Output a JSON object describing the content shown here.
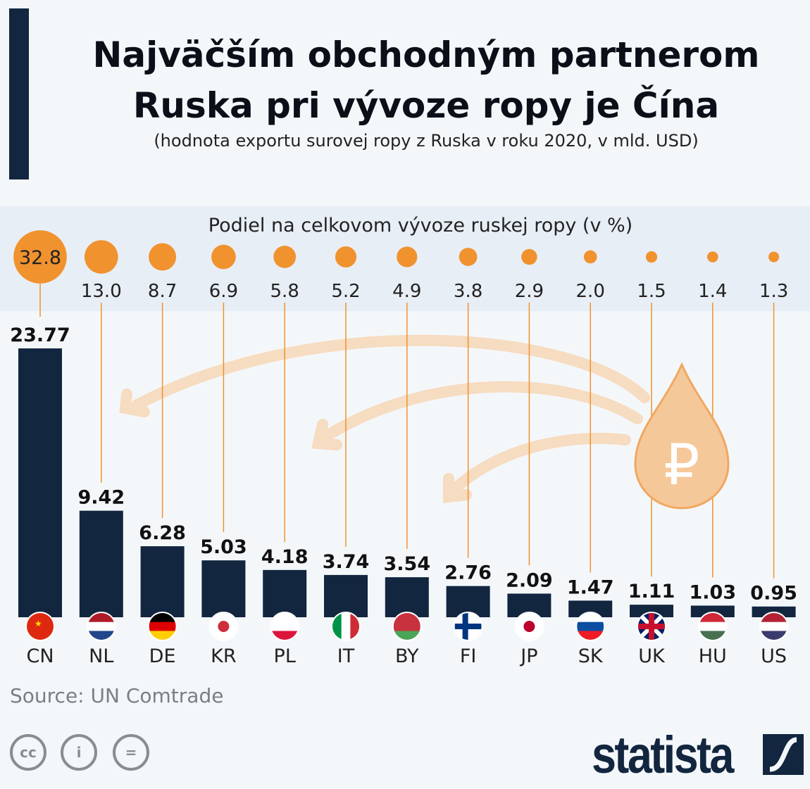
{
  "title": "Najväčším obchodným partnerom Ruska pri vývoze ropy je Čína",
  "subtitle": "(hodnota exportu surovej ropy z Ruska v roku 2020, v mld. USD)",
  "source": "Source: UN Comtrade",
  "brand": "statista",
  "license_icons": [
    "cc-icon",
    "attribution-icon",
    "no-derivatives-icon"
  ],
  "colors": {
    "bar": "#12263f",
    "bubble": "#f0922e",
    "band": "#e8eef5",
    "arrow": "#f6dcc0"
  },
  "chart_data": {
    "type": "bar",
    "title": "Najväčším obchodným partnerom Ruska pri vývoze ropy je Čína",
    "ylabel": "mld. USD",
    "categories": [
      "CN",
      "NL",
      "DE",
      "KR",
      "PL",
      "IT",
      "BY",
      "FI",
      "JP",
      "SK",
      "UK",
      "HU",
      "US"
    ],
    "values": [
      23.77,
      9.42,
      6.28,
      5.03,
      4.18,
      3.74,
      3.54,
      2.76,
      2.09,
      1.47,
      1.11,
      1.03,
      0.95
    ],
    "share_label": "Podiel na celkovom vývoze ruskej ropy (v %)",
    "share_values": [
      32.8,
      13.0,
      8.7,
      6.9,
      5.8,
      5.2,
      4.9,
      3.8,
      2.9,
      2.0,
      1.5,
      1.4,
      1.3
    ],
    "ylim": [
      0,
      23.77
    ]
  }
}
